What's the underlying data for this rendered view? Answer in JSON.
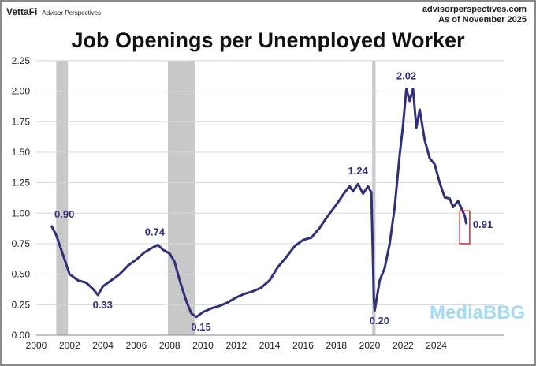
{
  "header": {
    "brand": "VettaFi",
    "brand_sub": "Advisor Perspectives",
    "site": "advisorperspectives.com",
    "as_of": "As of November 2025"
  },
  "watermark": "MediaBBG",
  "chart_data": {
    "type": "line",
    "title": "Job Openings per Unemployed Worker",
    "xlabel": "",
    "ylabel": "",
    "xlim": [
      2000,
      2026.3
    ],
    "ylim": [
      0,
      2.25
    ],
    "grid": true,
    "xticks": [
      "2000",
      "2002",
      "2004",
      "2006",
      "2008",
      "2010",
      "2012",
      "2014",
      "2016",
      "2018",
      "2020",
      "2022",
      "2024"
    ],
    "yticks": [
      "0.00",
      "0.25",
      "0.50",
      "0.75",
      "1.00",
      "1.25",
      "1.50",
      "1.75",
      "2.00",
      "2.25"
    ],
    "recessions": [
      [
        2001.2,
        2001.9
      ],
      [
        2007.9,
        2009.5
      ],
      [
        2020.15,
        2020.35
      ]
    ],
    "series": [
      {
        "name": "Job Openings per Unemployed Worker",
        "color": "#33307a",
        "x": [
          2000.9,
          2001.2,
          2001.5,
          2001.8,
          2002.0,
          2002.5,
          2003.0,
          2003.4,
          2003.7,
          2004.0,
          2004.5,
          2005.0,
          2005.5,
          2006.0,
          2006.5,
          2007.0,
          2007.3,
          2007.6,
          2008.0,
          2008.3,
          2008.6,
          2009.0,
          2009.3,
          2009.6,
          2010.0,
          2010.5,
          2011.0,
          2011.5,
          2012.0,
          2012.5,
          2013.0,
          2013.5,
          2014.0,
          2014.5,
          2015.0,
          2015.5,
          2016.0,
          2016.5,
          2017.0,
          2017.5,
          2018.0,
          2018.5,
          2018.8,
          2019.0,
          2019.3,
          2019.6,
          2019.9,
          2020.1,
          2020.25,
          2020.3,
          2020.6,
          2020.9,
          2021.2,
          2021.5,
          2021.8,
          2022.0,
          2022.2,
          2022.4,
          2022.6,
          2022.8,
          2023.0,
          2023.3,
          2023.6,
          2023.9,
          2024.2,
          2024.5,
          2024.8,
          2025.0,
          2025.3,
          2025.5,
          2025.7,
          2025.8
        ],
        "y": [
          0.9,
          0.82,
          0.7,
          0.58,
          0.5,
          0.45,
          0.43,
          0.38,
          0.33,
          0.4,
          0.45,
          0.5,
          0.57,
          0.62,
          0.68,
          0.72,
          0.74,
          0.7,
          0.67,
          0.6,
          0.45,
          0.28,
          0.18,
          0.15,
          0.19,
          0.22,
          0.24,
          0.27,
          0.31,
          0.34,
          0.36,
          0.39,
          0.45,
          0.56,
          0.64,
          0.73,
          0.78,
          0.8,
          0.88,
          0.98,
          1.07,
          1.17,
          1.22,
          1.18,
          1.24,
          1.16,
          1.22,
          1.17,
          0.3,
          0.2,
          0.45,
          0.55,
          0.75,
          1.05,
          1.48,
          1.72,
          2.02,
          1.92,
          2.02,
          1.7,
          1.85,
          1.6,
          1.45,
          1.4,
          1.25,
          1.13,
          1.12,
          1.05,
          1.1,
          1.04,
          0.98,
          0.91
        ]
      }
    ],
    "annotations": [
      {
        "text": "0.90",
        "x": 2000.9,
        "y": 0.9,
        "pos": "above-right"
      },
      {
        "text": "0.33",
        "x": 2003.7,
        "y": 0.33,
        "pos": "below"
      },
      {
        "text": "0.74",
        "x": 2007.3,
        "y": 0.74,
        "pos": "above-left"
      },
      {
        "text": "0.15",
        "x": 2009.6,
        "y": 0.15,
        "pos": "below"
      },
      {
        "text": "1.24",
        "x": 2019.3,
        "y": 1.24,
        "pos": "above"
      },
      {
        "text": "0.20",
        "x": 2020.3,
        "y": 0.2,
        "pos": "below"
      },
      {
        "text": "2.02",
        "x": 2022.2,
        "y": 2.02,
        "pos": "above"
      },
      {
        "text": "0.91",
        "x": 2025.8,
        "y": 0.91,
        "pos": "right"
      }
    ],
    "highlight_box": {
      "x": [
        2025.4,
        2026.0
      ],
      "y": [
        0.75,
        1.02
      ],
      "color": "#d0262a"
    }
  }
}
